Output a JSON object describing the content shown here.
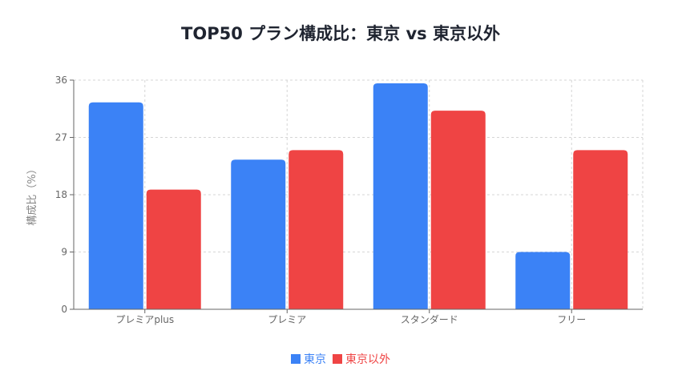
{
  "chart_data": {
    "type": "bar",
    "title": "TOP50 プラン構成比：東京 vs 東京以外",
    "xlabel": "",
    "ylabel": "構成比（%）",
    "ylim": [
      0,
      36
    ],
    "yticks": [
      0,
      9,
      18,
      27,
      36
    ],
    "categories": [
      "プレミアplus",
      "プレミア",
      "スタンダード",
      "フリー"
    ],
    "series": [
      {
        "name": "東京",
        "color": "#3b82f6",
        "values": [
          32.5,
          23.5,
          35.5,
          9.0
        ]
      },
      {
        "name": "東京以外",
        "color": "#ef4444",
        "values": [
          18.8,
          25.0,
          31.2,
          25.0
        ]
      }
    ],
    "grid": true,
    "legend_position": "bottom"
  }
}
